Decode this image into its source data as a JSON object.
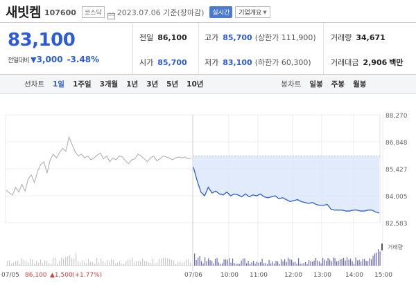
{
  "header": {
    "name": "새빗켐",
    "code": "107600",
    "market": "코스닥",
    "date_text": "2023.07.06  기준(장마감)",
    "live_badge": "실시간",
    "company_button": "기업개요"
  },
  "quote": {
    "price": "83,100",
    "change_label": "전일대비",
    "change_value": "3,000",
    "change_pct": "-3.48%",
    "prev_close_label": "전일",
    "prev_close": "86,100",
    "open_label": "시가",
    "open": "85,700",
    "high_label": "고가",
    "high": "85,700",
    "upper_limit": "(상한가 111,900)",
    "low_label": "저가",
    "low": "83,100",
    "lower_limit": "(하한가 60,300)",
    "volume_label": "거래량",
    "volume": "34,671",
    "amount_label": "거래대금",
    "amount": "2,906",
    "amount_unit": "백만",
    "accent_color": "#2b5bd6"
  },
  "tabs": {
    "line_chart_title": "선차트",
    "periods": [
      "1일",
      "1주일",
      "3개월",
      "1년",
      "3년",
      "5년",
      "10년"
    ],
    "active_period": "1일",
    "candle_chart_title": "봉차트",
    "candle_periods": [
      "일봉",
      "주봉",
      "월봉"
    ]
  },
  "chart_data": {
    "type": "line",
    "ylim": [
      82583,
      88270
    ],
    "y_ticks": [
      "88,270",
      "86,848",
      "85,427",
      "84,005",
      "82,583"
    ],
    "x_ticks": [
      "07/05",
      "07/06",
      "10:00",
      "11:00",
      "12:00",
      "13:00",
      "14:00",
      "15:00"
    ],
    "reference_price": 86100,
    "series": [
      {
        "values": [
          84300,
          84150,
          84050,
          84450,
          84200,
          84600,
          84250,
          84900,
          85100,
          84700,
          85300,
          85650,
          85800,
          85200,
          85900,
          86200,
          86000,
          86300,
          86500,
          86350,
          87100,
          86700,
          86300,
          86100,
          86200,
          86000,
          86100,
          85900,
          86000,
          86150,
          86250,
          85950,
          86100,
          85800,
          86000,
          85900,
          86100,
          86050,
          85850,
          85700,
          85900,
          85950,
          86200,
          86100,
          85950,
          85800,
          86000,
          86100,
          85850,
          85950,
          86100,
          86050,
          86000,
          85900,
          86000,
          86050,
          86000,
          86050,
          85950,
          86000
        ]
      },
      {
        "values": [
          85500,
          84800,
          84200,
          84000,
          84450,
          84150,
          84250,
          84100,
          84050,
          84200,
          84000,
          84100,
          84050,
          83950,
          84100,
          83950,
          84050,
          84000,
          84100,
          83950,
          83900,
          83950,
          84000,
          83850,
          83900,
          83800,
          83700,
          83750,
          83800,
          83700,
          83650,
          83600,
          83650,
          83550,
          83500,
          83500,
          83550,
          83300,
          83250,
          83250,
          83250,
          83200,
          83200,
          83250,
          83250,
          83200,
          83200,
          83250,
          83250,
          83150,
          83100
        ]
      }
    ],
    "volume_label": "거래량",
    "prev_day_summary": {
      "date": "07/05",
      "price": "86,100",
      "change": "▲1,500",
      "change_pct": "(+1.77%)",
      "color": "#d63b3b"
    }
  }
}
